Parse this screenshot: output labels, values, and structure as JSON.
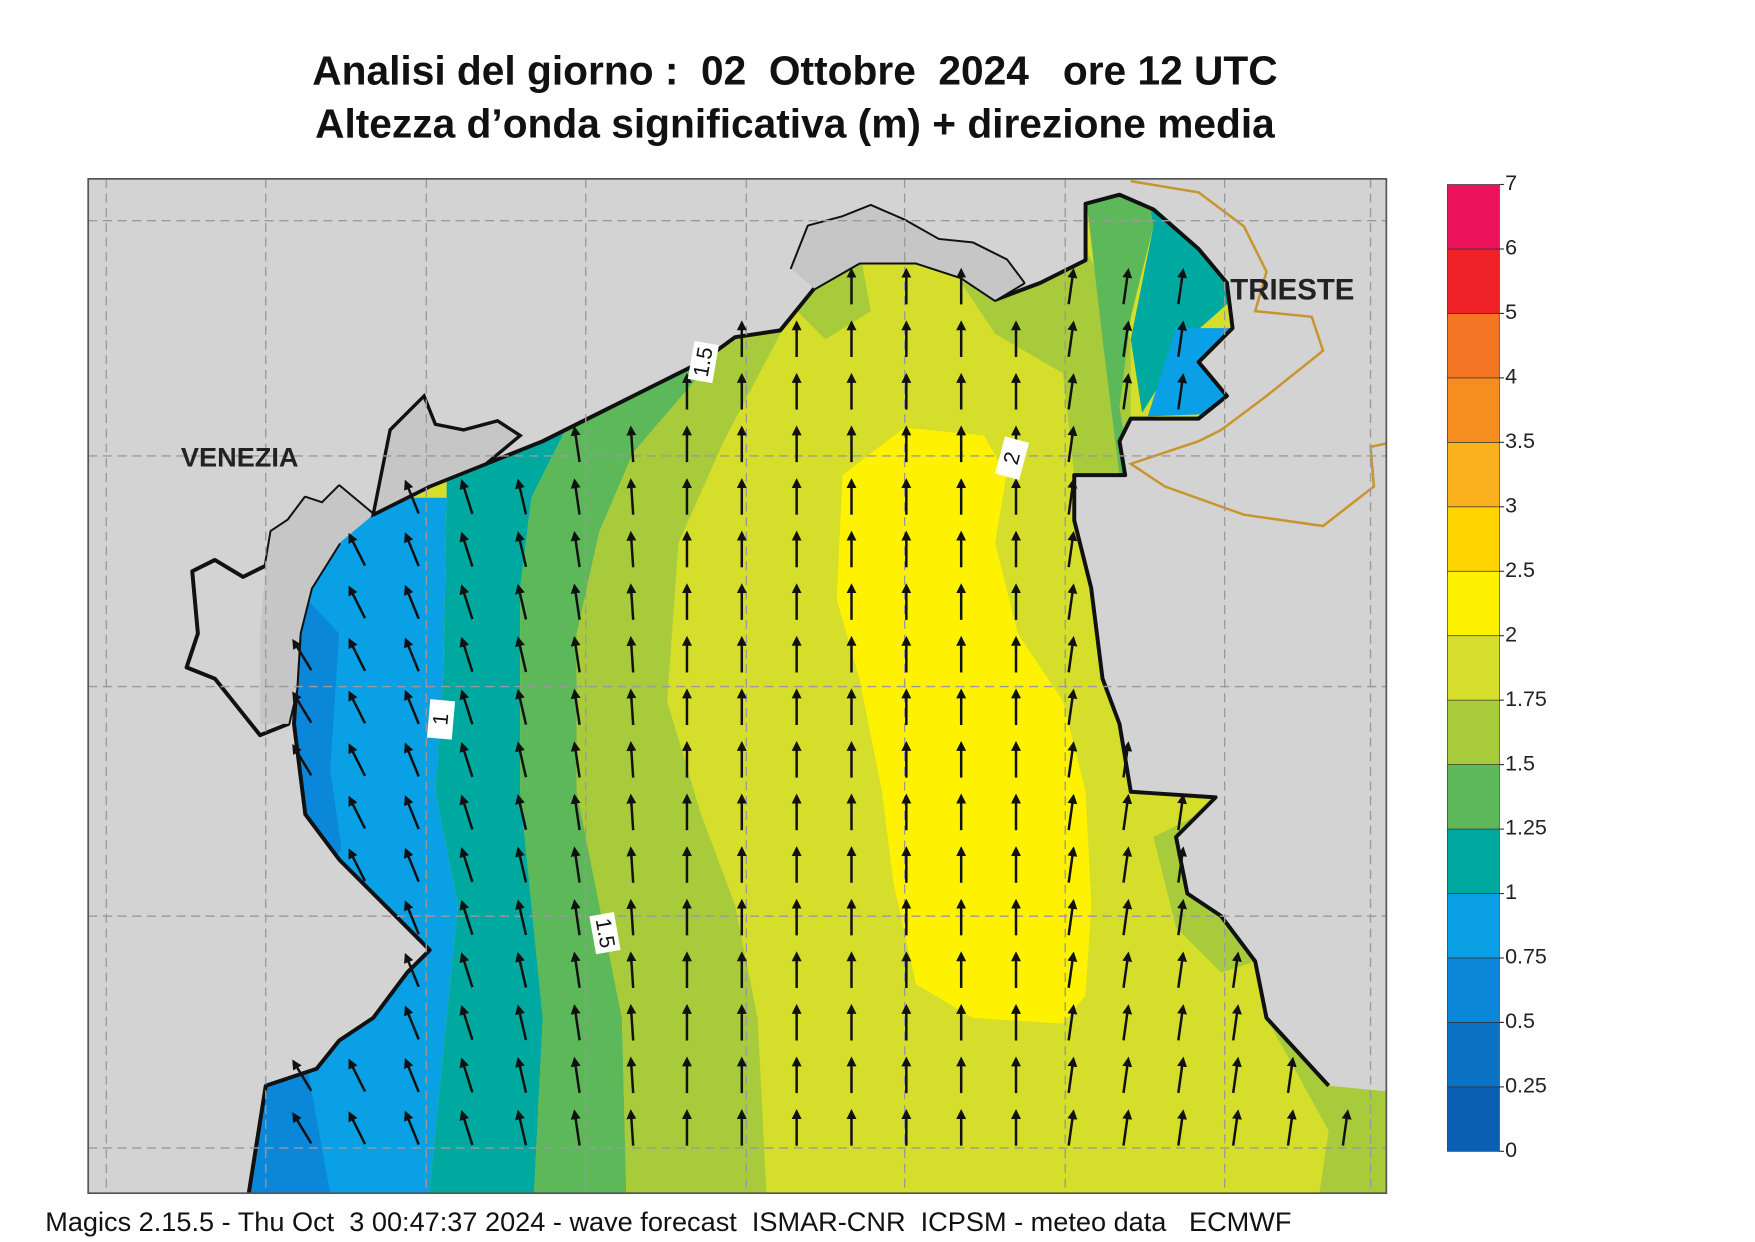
{
  "header": {
    "title": "Analisi del giorno :  02  Ottobre  2024   ore 12 UTC",
    "subtitle": "Altezza d’onda significativa (m) + direzione media"
  },
  "places": [
    "VENEZIA",
    "TRIESTE"
  ],
  "contour_labels": [
    "1.5",
    "2",
    "1",
    "1.5"
  ],
  "colorbar": {
    "levels": [
      0,
      0.25,
      0.5,
      0.75,
      1,
      1.25,
      1.5,
      1.75,
      2,
      2.5,
      3,
      3.5,
      4,
      5,
      6,
      7
    ],
    "colors": [
      "#0b5fb2",
      "#0b72c4",
      "#0a87d8",
      "#0aa0e6",
      "#00a99f",
      "#5db85a",
      "#a8cb3b",
      "#d5de2b",
      "#fff200",
      "#ffd500",
      "#fbb11e",
      "#f68d1f",
      "#f47625",
      "#ee2127",
      "#ec135c"
    ]
  },
  "footer": "Magics 2.15.5 - Thu Oct  3 00:47:37 2024 - wave forecast  ISMAR-CNR  ICPSM - meteo data   ECMWF"
}
